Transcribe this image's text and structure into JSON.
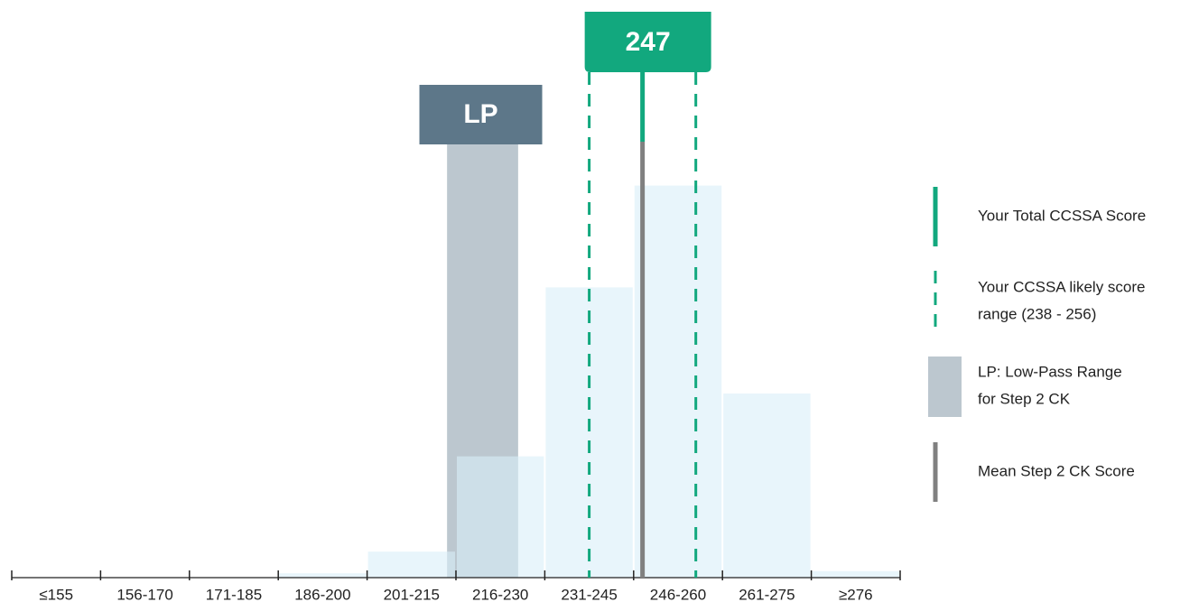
{
  "chart_data": {
    "type": "bar",
    "categories": [
      "≤155",
      "156-170",
      "171-185",
      "186-200",
      "201-215",
      "216-230",
      "231-245",
      "246-260",
      "261-275",
      "≥276"
    ],
    "values": [
      0,
      0,
      0,
      0.2,
      1.2,
      5.6,
      13.4,
      18.1,
      8.5,
      0.3
    ],
    "color": "#d9eef9",
    "ylim": [
      0,
      25
    ],
    "xlim": [
      140.5,
      290.5
    ],
    "score": 247,
    "score_color": "#12a87e",
    "likely_range": [
      238,
      256
    ],
    "low_pass_range": [
      214,
      226
    ],
    "low_pass_color": "#bcc7cf",
    "lp_label": "LP",
    "lp_label_color": "#5d7789",
    "mean": 247,
    "mean_color": "#808080",
    "legend": [
      {
        "lines": [
          "Your Total CCSSA Score"
        ]
      },
      {
        "lines": [
          "Your CCSSA likely score",
          "range (238 - 256)"
        ]
      },
      {
        "lines": [
          "LP: Low-Pass Range",
          "for Step 2 CK"
        ]
      },
      {
        "lines": [
          "Mean Step 2 CK Score"
        ]
      }
    ]
  }
}
